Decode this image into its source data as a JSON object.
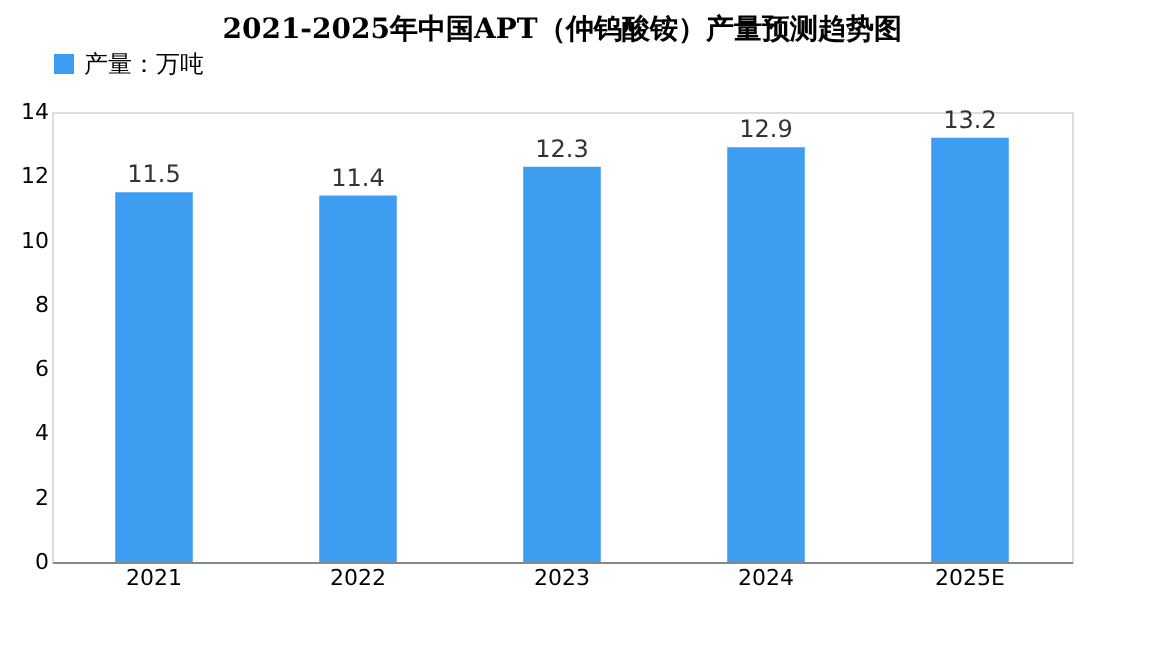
{
  "chart_data": {
    "type": "bar",
    "title": "2021-2025年中国APT（仲钨酸铵）产量预测趋势图",
    "categories": [
      "2021",
      "2022",
      "2023",
      "2024",
      "2025E"
    ],
    "series": [
      {
        "name": "产量：万吨",
        "color": "#3d9df0",
        "values": [
          11.5,
          11.4,
          12.3,
          12.9,
          13.2
        ]
      }
    ],
    "ylim": [
      0,
      14
    ],
    "yticks": [
      0,
      2,
      4,
      6,
      8,
      10,
      12,
      14
    ],
    "grid": false,
    "legend": "top",
    "data_labels": true
  }
}
